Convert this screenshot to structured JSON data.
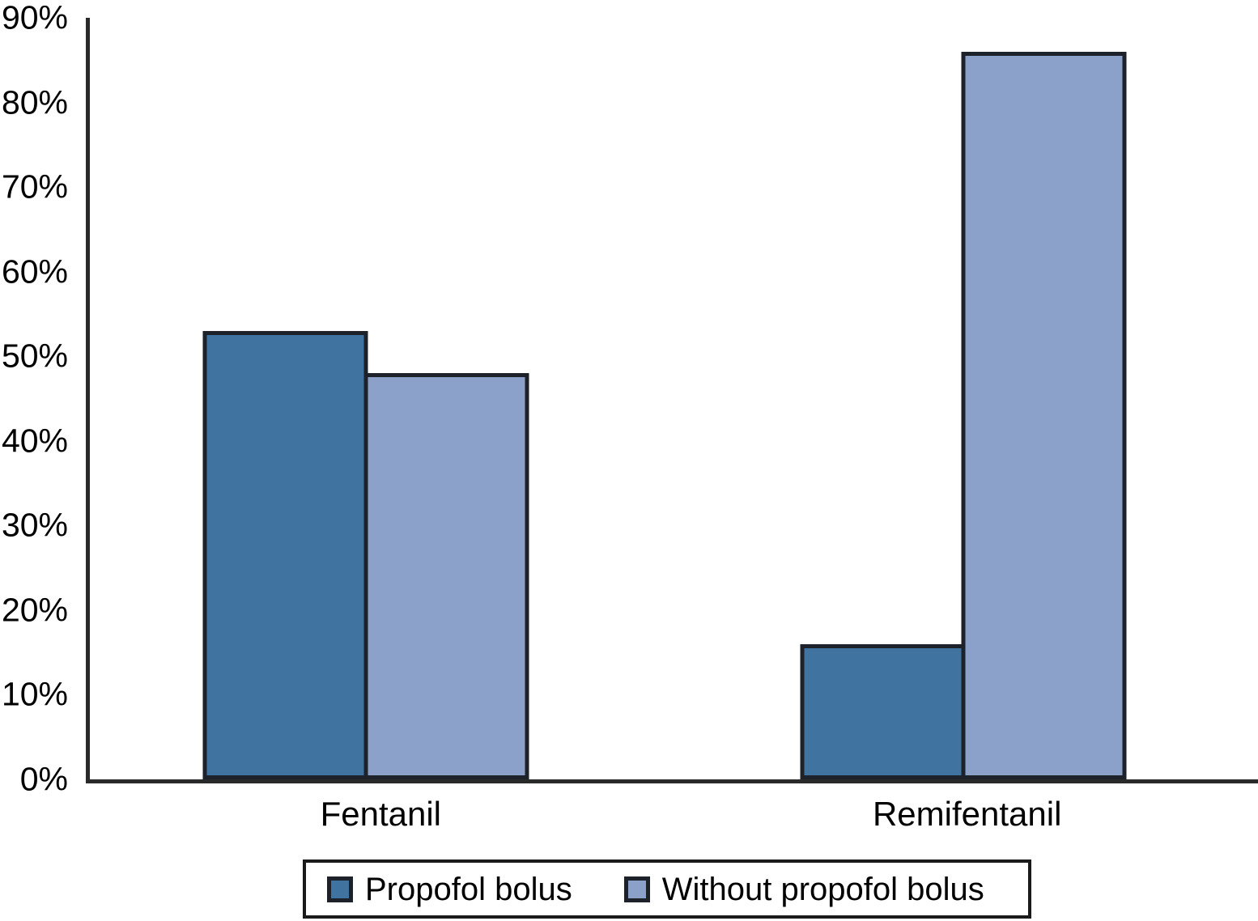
{
  "chart_data": {
    "type": "bar",
    "categories": [
      "Fentanil",
      "Remifentanil"
    ],
    "series": [
      {
        "name": "Propofol bolus",
        "color": "#4173a1",
        "values": [
          53,
          16
        ]
      },
      {
        "name": "Without propofol bolus",
        "color": "#8ba1c9",
        "values": [
          48,
          86
        ]
      }
    ],
    "ylim": [
      0,
      90
    ],
    "yticks": [
      0,
      10,
      20,
      30,
      40,
      50,
      60,
      70,
      80,
      90
    ],
    "ytick_labels": [
      "0%",
      "10%",
      "20%",
      "30%",
      "40%",
      "50%",
      "60%",
      "70%",
      "80%",
      "90%"
    ],
    "grid": false,
    "legend_position": "bottom",
    "bar_border_color": "#1d2129",
    "axis_color": "#2a2a2a",
    "text_color": "#000000",
    "background_color": "#ffffff"
  }
}
